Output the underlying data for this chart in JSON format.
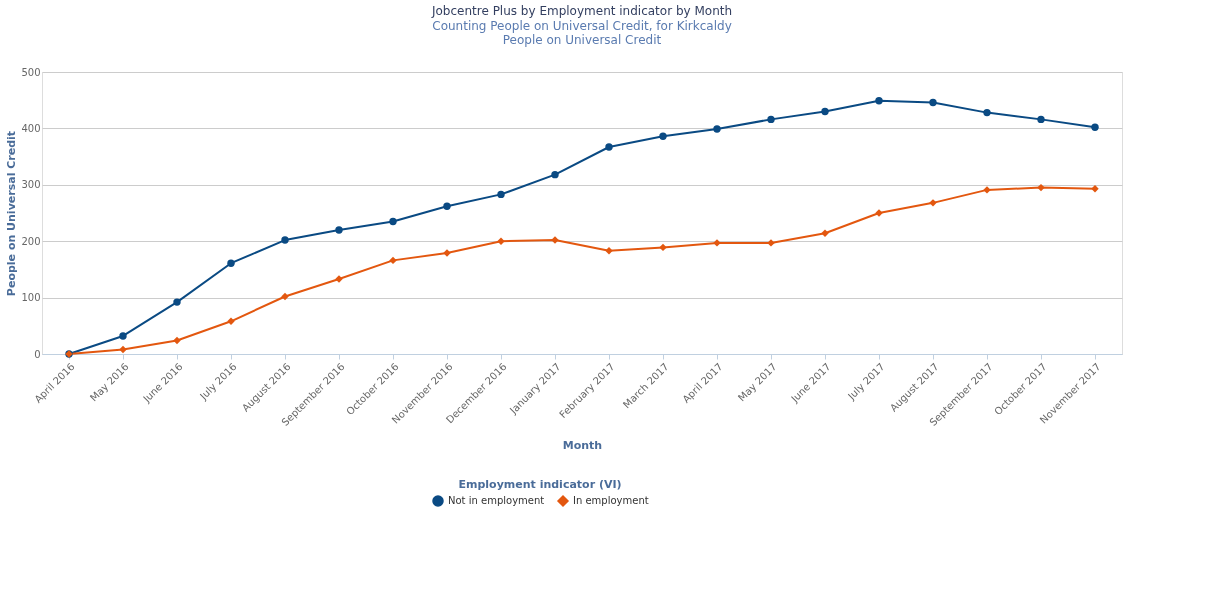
{
  "chart_data": {
    "type": "line",
    "title": "Jobcentre Plus by Employment indicator by Month",
    "subtitle": [
      "Counting People on Universal Credit, for Kirkcaldy",
      "People on Universal Credit"
    ],
    "xlabel": "Month",
    "ylabel": "People on Universal Credit",
    "legend_title": "Employment indicator (VI)",
    "legend": "bottom",
    "grid": "y",
    "line_style": "solid",
    "categories": [
      "April 2016",
      "May 2016",
      "June 2016",
      "July 2016",
      "August 2016",
      "September 2016",
      "October 2016",
      "November 2016",
      "December 2016",
      "January 2017",
      "February 2017",
      "March 2017",
      "April 2017",
      "May 2017",
      "June 2017",
      "July 2017",
      "August 2017",
      "September 2017",
      "October 2017",
      "November 2017"
    ],
    "ylim": [
      0,
      500
    ],
    "yticks": [
      0,
      100,
      200,
      300,
      400,
      500
    ],
    "series": [
      {
        "name": "Not in employment",
        "color": "#0a4a83",
        "marker": "circle",
        "values": [
          0,
          32,
          92,
          161,
          202,
          220,
          235,
          262,
          283,
          318,
          367,
          386,
          399,
          416,
          430,
          449,
          446,
          428,
          416,
          402
        ]
      },
      {
        "name": "In employment",
        "color": "#e3570f",
        "marker": "diamond",
        "values": [
          0,
          8,
          24,
          58,
          102,
          133,
          166,
          179,
          200,
          202,
          183,
          189,
          197,
          197,
          214,
          250,
          268,
          291,
          295,
          293
        ]
      }
    ]
  }
}
